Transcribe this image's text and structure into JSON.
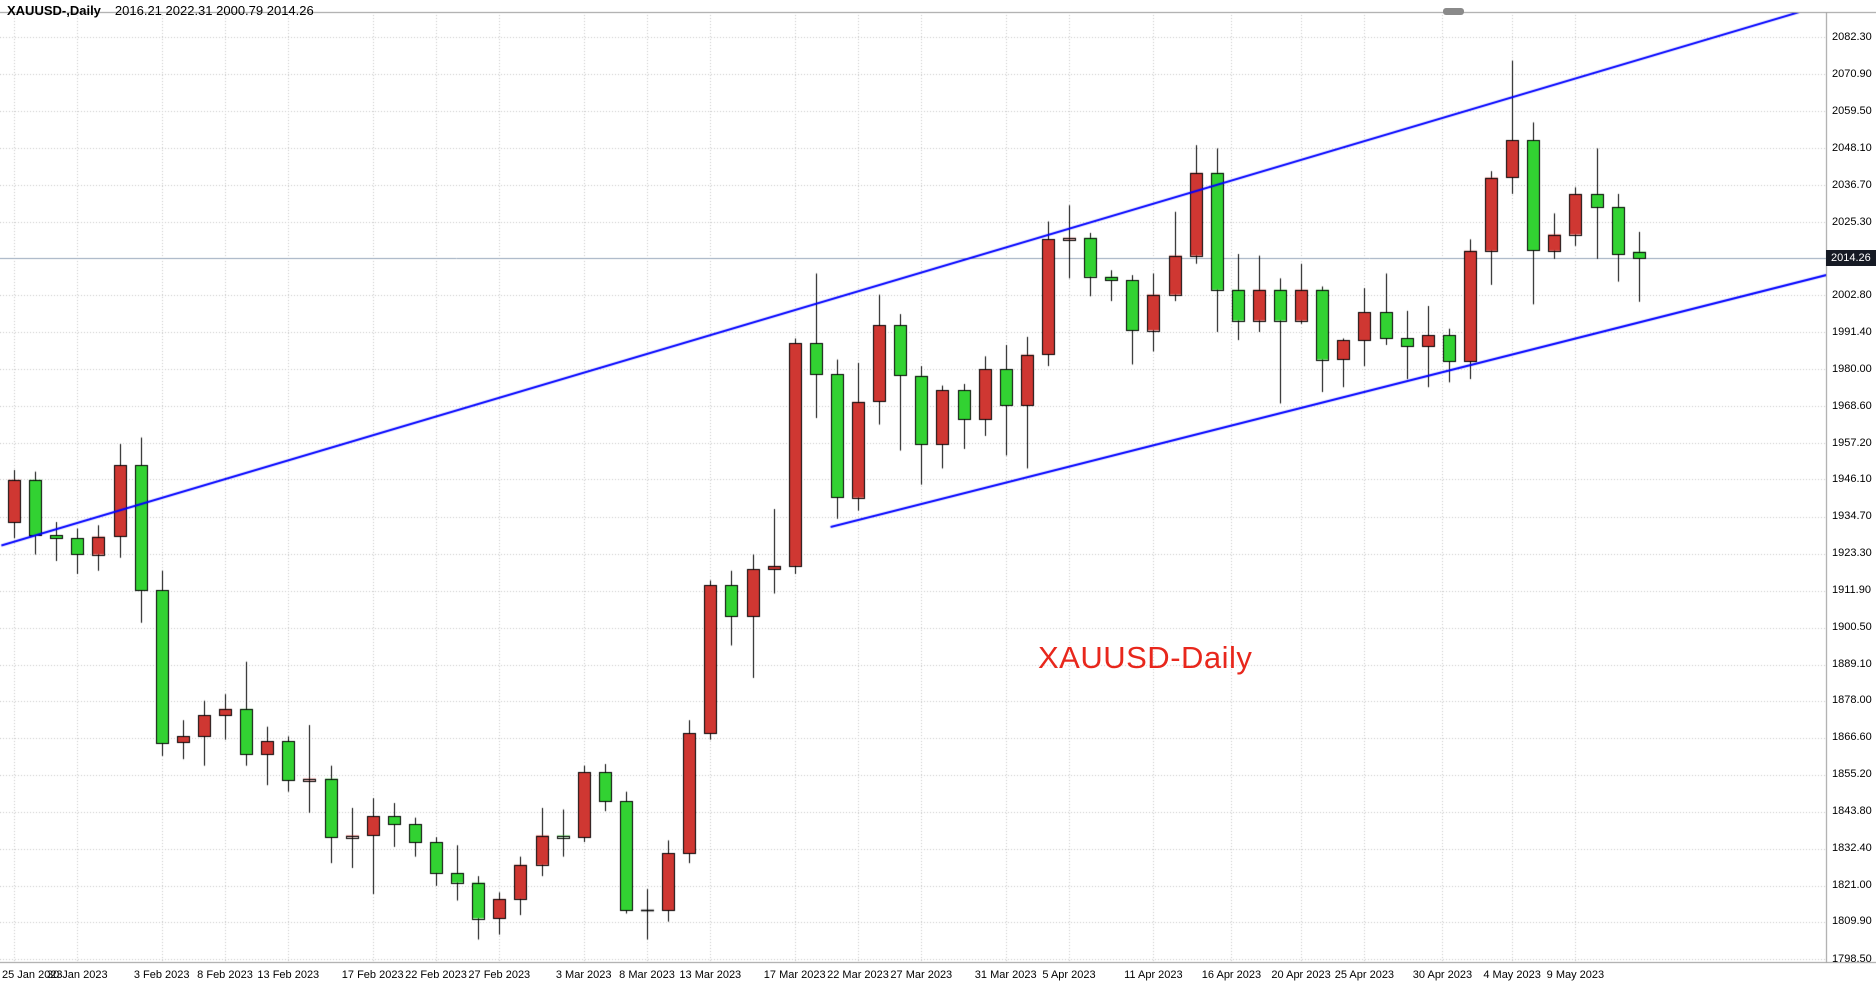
{
  "window": {
    "title_symbol": "XAUUSD-,Daily",
    "title_ohlc": "2016.21 2022.31 2000.79 2014.26"
  },
  "chart_label": "XAUUSD-Daily",
  "price_tag": "2014.26",
  "colors": {
    "background": "#ffffff",
    "bull": "#cf3732",
    "bear": "#32d232",
    "outline": "#000000",
    "wick": "#000000",
    "channel": "#0000ff",
    "grid": "#c8c8c8",
    "bid_line": "#96a6ba",
    "tag_bg": "#161a24",
    "tag_text": "#ffffff",
    "label_red": "#e8271c",
    "frame": "#9a9a9a",
    "scrollbar": "#8a8a8a",
    "axis_text": "#000000"
  },
  "axis": {
    "price_labels": [
      "2082.30",
      "2070.90",
      "2059.50",
      "2048.10",
      "2036.70",
      "2025.30",
      "2002.80",
      "1991.40",
      "1980.00",
      "1968.60",
      "1957.20",
      "1946.10",
      "1934.70",
      "1923.30",
      "1911.90",
      "1900.50",
      "1889.10",
      "1878.00",
      "1866.60",
      "1855.20",
      "1843.80",
      "1832.40",
      "1821.00",
      "1809.90",
      "1798.50"
    ],
    "date_labels": [
      {
        "label": "25 Jan 2023",
        "bar": 0
      },
      {
        "label": "30 Jan 2023",
        "bar": 3
      },
      {
        "label": "3 Feb 2023",
        "bar": 7
      },
      {
        "label": "8 Feb 2023",
        "bar": 10
      },
      {
        "label": "13 Feb 2023",
        "bar": 13
      },
      {
        "label": "17 Feb 2023",
        "bar": 17
      },
      {
        "label": "22 Feb 2023",
        "bar": 20
      },
      {
        "label": "27 Feb 2023",
        "bar": 23
      },
      {
        "label": "3 Mar 2023",
        "bar": 27
      },
      {
        "label": "8 Mar 2023",
        "bar": 30
      },
      {
        "label": "13 Mar 2023",
        "bar": 33
      },
      {
        "label": "17 Mar 2023",
        "bar": 37
      },
      {
        "label": "22 Mar 2023",
        "bar": 40
      },
      {
        "label": "27 Mar 2023",
        "bar": 43
      },
      {
        "label": "31 Mar 2023",
        "bar": 47
      },
      {
        "label": "5 Apr 2023",
        "bar": 50
      },
      {
        "label": "11 Apr 2023",
        "bar": 54
      },
      {
        "label": "16 Apr 2023",
        "bar": 57.7
      },
      {
        "label": "20 Apr 2023",
        "bar": 61
      },
      {
        "label": "25 Apr 2023",
        "bar": 64
      },
      {
        "label": "30 Apr 2023",
        "bar": 67.7
      },
      {
        "label": "4 May 2023",
        "bar": 71
      },
      {
        "label": "9 May 2023",
        "bar": 74
      }
    ]
  },
  "chart_data": {
    "type": "candlestick",
    "symbol": "XAUUSD",
    "timeframe": "Daily",
    "title": "XAUUSD-Daily",
    "ylim": [
      1798.5,
      2082.3
    ],
    "grid": true,
    "bid_line": 2014.26,
    "last_bar": {
      "open": 2016.21,
      "high": 2022.31,
      "low": 2000.79,
      "close": 2014.26
    },
    "color_convention": "bullish candles drawn red, bearish candles drawn green",
    "trendlines": [
      {
        "name": "channel-upper",
        "bar1": -0.6,
        "price1": 1925.8,
        "bar2": 88,
        "price2": 2096.5
      },
      {
        "name": "channel-lower",
        "bar1": 38.7,
        "price1": 1931.5,
        "bar2": 86,
        "price2": 2009.2
      }
    ],
    "candles": [
      [
        "2023-01-25",
        1933,
        1949,
        1928,
        1946
      ],
      [
        "2023-01-26",
        1946,
        1948.5,
        1923,
        1929
      ],
      [
        "2023-01-27",
        1929,
        1933,
        1921,
        1928
      ],
      [
        "2023-01-30",
        1928,
        1931,
        1917,
        1923
      ],
      [
        "2023-01-31",
        1923,
        1932,
        1918,
        1928.5
      ],
      [
        "2023-02-01",
        1928.5,
        1957,
        1922,
        1950.5
      ],
      [
        "2023-02-02",
        1950.5,
        1959,
        1902,
        1912
      ],
      [
        "2023-02-03",
        1912,
        1918,
        1861,
        1865
      ],
      [
        "2023-02-06",
        1865,
        1872,
        1860,
        1867
      ],
      [
        "2023-02-07",
        1867,
        1878,
        1858,
        1873.5
      ],
      [
        "2023-02-08",
        1873.5,
        1880,
        1866,
        1875.5
      ],
      [
        "2023-02-09",
        1875.5,
        1890,
        1858,
        1861.5
      ],
      [
        "2023-02-10",
        1861.5,
        1870,
        1852,
        1865.5
      ],
      [
        "2023-02-13",
        1865.5,
        1867,
        1850,
        1853.5
      ],
      [
        "2023-02-14",
        1853.5,
        1870.5,
        1843.5,
        1854
      ],
      [
        "2023-02-15",
        1854,
        1858,
        1828,
        1836
      ],
      [
        "2023-02-16",
        1836,
        1845,
        1826.5,
        1836.5
      ],
      [
        "2023-02-17",
        1836.5,
        1848,
        1818.5,
        1842.5
      ],
      [
        "2023-02-20",
        1842.5,
        1846.5,
        1833,
        1840
      ],
      [
        "2023-02-21",
        1840,
        1842,
        1830,
        1834.5
      ],
      [
        "2023-02-22",
        1834.5,
        1836,
        1821,
        1825
      ],
      [
        "2023-02-23",
        1825,
        1833.5,
        1816.5,
        1822
      ],
      [
        "2023-02-24",
        1822,
        1824,
        1804.5,
        1811
      ],
      [
        "2023-02-27",
        1811,
        1819,
        1806,
        1817
      ],
      [
        "2023-02-28",
        1817,
        1830,
        1812,
        1827.5
      ],
      [
        "2023-03-01",
        1827.5,
        1845,
        1824,
        1836.5
      ],
      [
        "2023-03-02",
        1836.5,
        1844.5,
        1830,
        1836
      ],
      [
        "2023-03-03",
        1836,
        1858,
        1834.5,
        1856
      ],
      [
        "2023-03-06",
        1856,
        1858.5,
        1844,
        1847
      ],
      [
        "2023-03-07",
        1847,
        1850,
        1812.5,
        1813.5
      ],
      [
        "2023-03-08",
        1813.5,
        1820,
        1804.5,
        1813.5
      ],
      [
        "2023-03-09",
        1813.5,
        1835,
        1810,
        1831
      ],
      [
        "2023-03-10",
        1831,
        1872,
        1828,
        1868
      ],
      [
        "2023-03-13",
        1868,
        1915,
        1866,
        1913.5
      ],
      [
        "2023-03-14",
        1913.5,
        1918,
        1895,
        1904
      ],
      [
        "2023-03-15",
        1904,
        1923,
        1885,
        1918.5
      ],
      [
        "2023-03-16",
        1918.5,
        1937,
        1911,
        1919.5
      ],
      [
        "2023-03-17",
        1919.5,
        1989.5,
        1917,
        1988
      ],
      [
        "2023-03-20",
        1988,
        2009.5,
        1965,
        1978.5
      ],
      [
        "2023-03-21",
        1978.5,
        1983,
        1934,
        1940.5
      ],
      [
        "2023-03-22",
        1940.5,
        1982,
        1936.5,
        1970
      ],
      [
        "2023-03-23",
        1970,
        2003,
        1963,
        1993.5
      ],
      [
        "2023-03-24",
        1993.5,
        1997,
        1955,
        1978
      ],
      [
        "2023-03-27",
        1978,
        1981,
        1944.5,
        1957
      ],
      [
        "2023-03-28",
        1957,
        1975,
        1949.5,
        1973.5
      ],
      [
        "2023-03-29",
        1973.5,
        1975.5,
        1955.5,
        1964.5
      ],
      [
        "2023-03-30",
        1964.5,
        1984,
        1959.5,
        1980
      ],
      [
        "2023-03-31",
        1980,
        1987.5,
        1953.5,
        1969
      ],
      [
        "2023-04-03",
        1969,
        1990,
        1949.5,
        1984.5
      ],
      [
        "2023-04-04",
        1984.5,
        2025.5,
        1981,
        2020
      ],
      [
        "2023-04-05",
        2020,
        2030.5,
        2008,
        2020.5
      ],
      [
        "2023-04-06",
        2020.5,
        2022,
        2002.5,
        2008.5
      ],
      [
        "2023-04-07",
        2008.5,
        2010.5,
        2001,
        2007.5
      ],
      [
        "2023-04-10",
        2007.5,
        2009,
        1981.5,
        1992
      ],
      [
        "2023-04-11",
        1992,
        2009.5,
        1985.5,
        2003
      ],
      [
        "2023-04-12",
        2003,
        2028.5,
        2001,
        2015
      ],
      [
        "2023-04-13",
        2015,
        2049,
        2012.5,
        2040.5
      ],
      [
        "2023-04-14",
        2040.5,
        2048,
        1991.5,
        2004.5
      ],
      [
        "2023-04-17",
        2004.5,
        2015.5,
        1989,
        1995
      ],
      [
        "2023-04-18",
        1995,
        2015,
        1991.5,
        2004.5
      ],
      [
        "2023-04-19",
        2004.5,
        2008,
        1969.5,
        1995
      ],
      [
        "2023-04-20",
        1995,
        2012.5,
        1994,
        2004.5
      ],
      [
        "2023-04-21",
        2004.5,
        2005.5,
        1973,
        1983
      ],
      [
        "2023-04-24",
        1983,
        1989.5,
        1974.5,
        1989
      ],
      [
        "2023-04-25",
        1989,
        2005,
        1981,
        1997.5
      ],
      [
        "2023-04-26",
        1997.5,
        2009.5,
        1987.5,
        1989.5
      ],
      [
        "2023-04-27",
        1989.5,
        1998,
        1977,
        1987
      ],
      [
        "2023-04-28",
        1987,
        1999.5,
        1974.5,
        1990.5
      ],
      [
        "2023-05-01",
        1990.5,
        1992.5,
        1976,
        1982.5
      ],
      [
        "2023-05-02",
        1982.5,
        2020,
        1977,
        2016.5
      ],
      [
        "2023-05-03",
        2016.5,
        2041,
        2006,
        2039
      ],
      [
        "2023-05-04",
        2039,
        2075,
        2034,
        2050.5
      ],
      [
        "2023-05-05",
        2050.5,
        2056,
        2000,
        2016.5
      ],
      [
        "2023-05-08",
        2016.5,
        2028,
        2014,
        2021.5
      ],
      [
        "2023-05-09",
        2021.5,
        2036,
        2018,
        2034
      ],
      [
        "2023-05-10",
        2034,
        2048,
        2014,
        2030
      ],
      [
        "2023-05-11",
        2030,
        2034,
        2007,
        2015.5
      ],
      [
        "2023-05-12",
        2016.21,
        2022.31,
        2000.79,
        2014.26
      ]
    ]
  }
}
